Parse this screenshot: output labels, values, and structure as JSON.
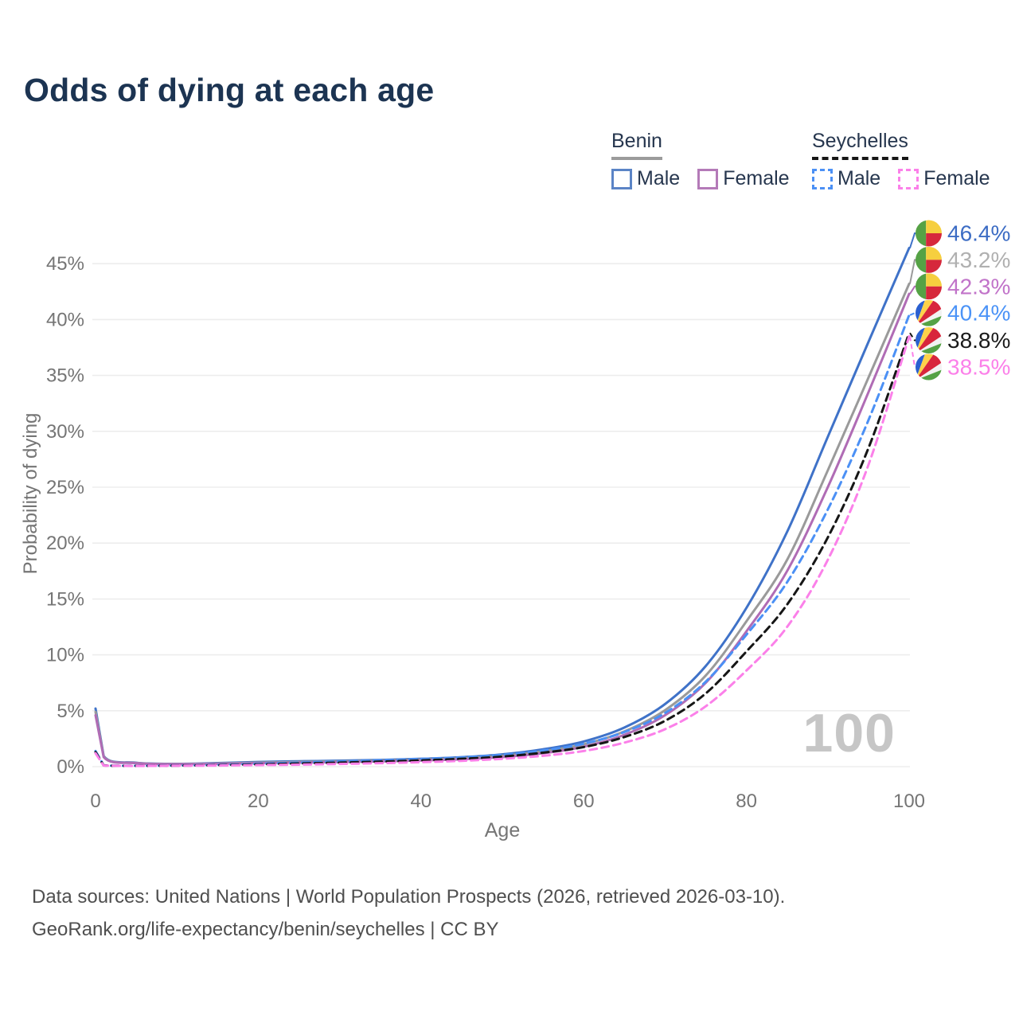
{
  "title": "Odds of dying at each age",
  "legend": {
    "groups": [
      {
        "label": "Benin",
        "line_style": "solid",
        "underline_color": "#9b9b9b",
        "items": [
          {
            "label": "Male",
            "color": "#4a7dc9"
          },
          {
            "label": "Female",
            "color": "#b678bf"
          }
        ]
      },
      {
        "label": "Seychelles",
        "line_style": "dashed",
        "underline_color": "#161616",
        "items": [
          {
            "label": "Male",
            "color": "#4b90f5"
          },
          {
            "label": "Female",
            "color": "#fb80e9"
          }
        ]
      }
    ]
  },
  "watermark": {
    "text": "100",
    "color": "#c6c6c6"
  },
  "footer": {
    "line1": "Data sources: United Nations | World Population Prospects (2026, retrieved 2026-03-10).",
    "line2": "GeoRank.org/life-expectancy/benin/seychelles | CC BY"
  },
  "chart_data": {
    "type": "line",
    "title": "Odds of dying at each age",
    "xlabel": "Age",
    "ylabel": "Probability of dying",
    "xlim": [
      0,
      100
    ],
    "ylim": [
      0,
      48
    ],
    "grid": "horizontal-only",
    "legend_position": "top-right",
    "x_ticks": [
      0,
      20,
      40,
      60,
      80,
      100
    ],
    "y_ticks": [
      0,
      5,
      10,
      15,
      20,
      25,
      30,
      35,
      40,
      45
    ],
    "y_tick_format": "percent",
    "x": [
      0,
      1,
      5,
      10,
      15,
      20,
      25,
      30,
      35,
      40,
      45,
      50,
      55,
      60,
      65,
      70,
      75,
      80,
      85,
      90,
      95,
      100
    ],
    "series": [
      {
        "id": "benin-male",
        "name": "Benin Male",
        "color": "#3f72c8",
        "dashed": false,
        "flag": "benin",
        "end_label": "46.4%",
        "end_value": 46.4,
        "label_color": "#3c6cc4",
        "values": [
          5.2,
          0.95,
          0.35,
          0.25,
          0.32,
          0.42,
          0.48,
          0.53,
          0.6,
          0.7,
          0.85,
          1.1,
          1.55,
          2.25,
          3.5,
          5.6,
          9.0,
          14.2,
          21.0,
          29.5,
          38.0,
          46.4
        ]
      },
      {
        "id": "benin-both",
        "name": "Benin Both sexes",
        "color": "#9a9a9a",
        "dashed": false,
        "flag": "benin",
        "end_label": "43.2%",
        "end_value": 43.2,
        "label_color": "#b0b0b0",
        "values": [
          4.9,
          0.9,
          0.33,
          0.23,
          0.28,
          0.36,
          0.42,
          0.47,
          0.53,
          0.62,
          0.75,
          0.97,
          1.38,
          2.0,
          3.15,
          5.05,
          8.15,
          13.0,
          18.5,
          26.5,
          34.8,
          43.2
        ]
      },
      {
        "id": "benin-female",
        "name": "Benin Female",
        "color": "#b06cb5",
        "dashed": false,
        "flag": "benin",
        "end_label": "42.3%",
        "end_value": 42.3,
        "label_color": "#c173c9",
        "values": [
          4.6,
          0.85,
          0.31,
          0.22,
          0.25,
          0.31,
          0.36,
          0.41,
          0.47,
          0.55,
          0.66,
          0.85,
          1.2,
          1.78,
          2.85,
          4.6,
          7.5,
          12.1,
          17.5,
          25.0,
          33.5,
          42.3
        ]
      },
      {
        "id": "seychelles-male",
        "name": "Seychelles Male",
        "color": "#4b90f5",
        "dashed": true,
        "flag": "seychelles",
        "end_label": "40.4%",
        "end_value": 40.4,
        "label_color": "#4b93f7",
        "values": [
          1.4,
          0.12,
          0.08,
          0.1,
          0.16,
          0.26,
          0.36,
          0.46,
          0.56,
          0.68,
          0.83,
          1.05,
          1.45,
          2.05,
          3.1,
          4.8,
          7.6,
          11.8,
          16.5,
          23.0,
          31.0,
          40.4
        ]
      },
      {
        "id": "seychelles-both",
        "name": "Seychelles Both sexes",
        "color": "#161616",
        "dashed": true,
        "flag": "seychelles",
        "end_label": "38.8%",
        "end_value": 38.8,
        "label_color": "#1a1a1a",
        "values": [
          1.3,
          0.11,
          0.07,
          0.09,
          0.13,
          0.2,
          0.28,
          0.36,
          0.45,
          0.56,
          0.7,
          0.9,
          1.25,
          1.75,
          2.65,
          4.1,
          6.55,
          10.3,
          14.5,
          20.5,
          28.5,
          38.8
        ]
      },
      {
        "id": "seychelles-female",
        "name": "Seychelles Female",
        "color": "#fb80e9",
        "dashed": true,
        "flag": "seychelles",
        "end_label": "38.5%",
        "end_value": 38.5,
        "label_color": "#fb80e9",
        "values": [
          1.2,
          0.1,
          0.06,
          0.08,
          0.1,
          0.14,
          0.18,
          0.24,
          0.31,
          0.4,
          0.52,
          0.7,
          0.97,
          1.4,
          2.15,
          3.35,
          5.4,
          8.6,
          12.5,
          18.5,
          27.0,
          38.5
        ]
      }
    ],
    "flag_colors": {
      "benin": {
        "green": "#55a245",
        "yellow": "#f6cf3f",
        "red": "#d6283c"
      },
      "seychelles": {
        "blue": "#2a5fd0",
        "yellow": "#fdd24a",
        "red": "#d8263c",
        "white": "#f2f2f2",
        "green": "#55a245"
      }
    }
  }
}
